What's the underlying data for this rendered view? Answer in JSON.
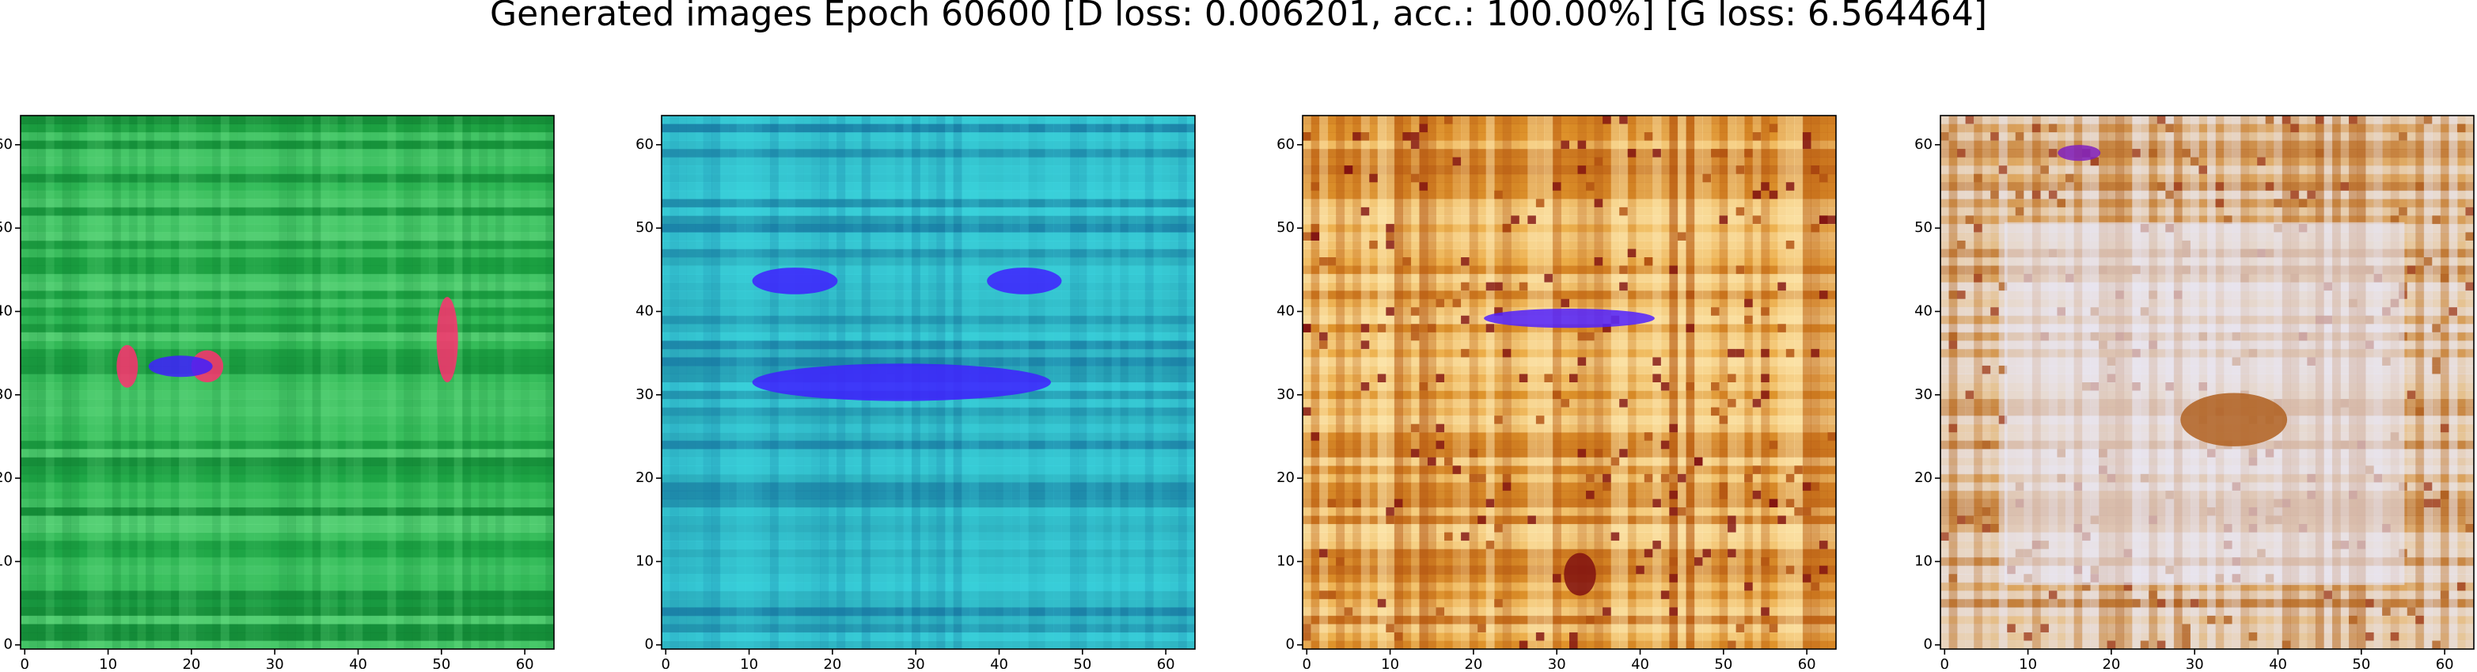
{
  "figure": {
    "title": "Generated images Epoch 60600 [D loss: 0.006201, acc.: 100.00%] [G loss: 6.564464]"
  },
  "chart_data": [
    {
      "type": "image",
      "xlim": [
        -0.5,
        63.5
      ],
      "ylim": [
        63.5,
        -0.5
      ],
      "xticks": [
        0,
        10,
        20,
        30,
        40,
        50,
        60
      ],
      "yticks": [
        0,
        10,
        20,
        30,
        40,
        50,
        60
      ],
      "palette": [
        "#22b04a",
        "#0e7a30",
        "#6fe08a",
        "#ff3070",
        "#4020ff"
      ]
    },
    {
      "type": "image",
      "xlim": [
        -0.5,
        63.5
      ],
      "ylim": [
        63.5,
        -0.5
      ],
      "xticks": [
        0,
        10,
        20,
        30,
        40,
        50,
        60
      ],
      "yticks": [
        0,
        10,
        20,
        30,
        40,
        50,
        60
      ],
      "palette": [
        "#2aa8b8",
        "#1570a0",
        "#40e0e8",
        "#4020ff",
        "#2a8a40"
      ]
    },
    {
      "type": "image",
      "xlim": [
        -0.5,
        63.5
      ],
      "ylim": [
        63.5,
        -0.5
      ],
      "xticks": [
        0,
        10,
        20,
        30,
        40,
        50,
        60
      ],
      "yticks": [
        0,
        10,
        20,
        30,
        40,
        50,
        60
      ],
      "palette": [
        "#e8a030",
        "#b05010",
        "#fff0c0",
        "#5020ff",
        "#801010"
      ]
    },
    {
      "type": "image",
      "xlim": [
        -0.5,
        63.5
      ],
      "ylim": [
        63.5,
        -0.5
      ],
      "xticks": [
        0,
        10,
        20,
        30,
        40,
        50,
        60
      ],
      "yticks": [
        0,
        10,
        20,
        30,
        40,
        50,
        60
      ],
      "palette": [
        "#e8b870",
        "#b06020",
        "#e8e8f8",
        "#8020c0",
        "#a04020"
      ]
    }
  ]
}
